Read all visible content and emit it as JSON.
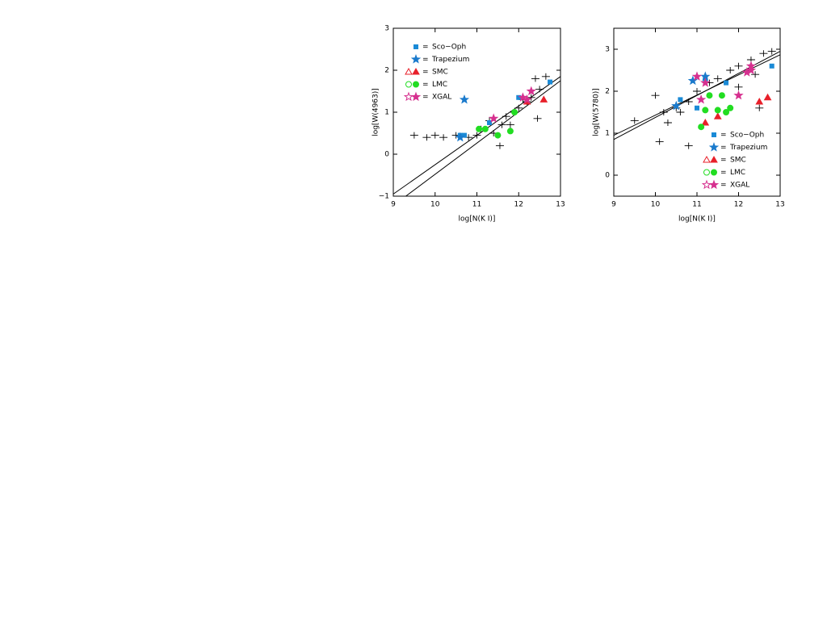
{
  "legend_separator": "=",
  "chart_data": [
    {
      "type": "scatter",
      "xlabel": "log[N(K I)]",
      "ylabel": "log[W(4963)]",
      "xlim": [
        9,
        13
      ],
      "ylim": [
        -1,
        3
      ],
      "xticks": [
        9,
        10,
        11,
        12,
        13
      ],
      "yticks": [
        {
          "value": -1,
          "label": "−1"
        },
        0,
        1,
        2,
        3
      ],
      "legend": "upper left",
      "fits": [
        {
          "x": [
            9,
            13
          ],
          "values": [
            -0.95,
            1.85
          ]
        },
        {
          "x": [
            9.3,
            13
          ],
          "values": [
            -1,
            1.75
          ]
        }
      ],
      "series": [
        {
          "color": "#000000",
          "marker": "plus",
          "x": [
            9.5,
            9.8,
            10.0,
            10.2,
            10.5,
            10.8,
            11.0,
            11.1,
            11.4,
            11.6,
            11.7,
            11.9,
            12.0,
            12.2,
            12.3,
            12.5,
            12.65,
            12.4,
            12.1,
            11.8,
            11.3,
            12.45,
            11.55
          ],
          "values": [
            0.45,
            0.4,
            0.45,
            0.4,
            0.45,
            0.4,
            0.45,
            0.6,
            0.5,
            0.7,
            0.9,
            1.0,
            1.1,
            1.25,
            1.35,
            1.55,
            1.85,
            1.8,
            1.3,
            0.7,
            0.8,
            0.85,
            0.2
          ]
        },
        {
          "name": "Sco−Oph",
          "color": "#1a8ad6",
          "marker": "square",
          "x": [
            10.7,
            10.6,
            12.0,
            12.75,
            11.3
          ],
          "values": [
            0.45,
            0.45,
            1.35,
            1.72,
            0.75
          ]
        },
        {
          "name": "Trapezium",
          "color": "#1a7acc",
          "marker": "star",
          "x": [
            10.7,
            10.6
          ],
          "values": [
            1.3,
            0.4
          ]
        },
        {
          "name": "SMC",
          "color": "#e8202a",
          "marker": "triangle",
          "legend_open": true,
          "x": [
            12.6,
            12.2
          ],
          "values": [
            1.3,
            1.25
          ]
        },
        {
          "name": "LMC",
          "color": "#22dd22",
          "marker": "circle",
          "legend_open": true,
          "x": [
            11.5,
            11.8,
            11.9,
            11.2,
            11.05
          ],
          "values": [
            0.45,
            0.55,
            1.0,
            0.6,
            0.6
          ]
        },
        {
          "name": "XGAL",
          "color": "#d6308f",
          "marker": "star",
          "legend_open": true,
          "x": [
            12.1,
            12.3,
            11.4,
            12.2
          ],
          "values": [
            1.35,
            1.5,
            0.85,
            1.3
          ]
        }
      ]
    },
    {
      "type": "scatter",
      "xlabel": "log[N(K I)]",
      "ylabel": "log[W(5780)]",
      "xlim": [
        9,
        13
      ],
      "ylim": [
        -0.5,
        3.5
      ],
      "xticks": [
        9,
        10,
        11,
        12,
        13
      ],
      "yticks": [
        0,
        1,
        2,
        3
      ],
      "legend": "lower right",
      "fits": [
        {
          "x": [
            9,
            13
          ],
          "values": [
            0.85,
            2.95
          ]
        },
        {
          "x": [
            9,
            13
          ],
          "values": [
            0.95,
            2.87
          ]
        }
      ],
      "series": [
        {
          "color": "#000000",
          "marker": "plus",
          "x": [
            9.5,
            10.0,
            10.2,
            10.3,
            10.5,
            10.6,
            10.8,
            10.8,
            11.0,
            11.3,
            11.5,
            11.8,
            12.0,
            12.3,
            12.6,
            12.8,
            12.4,
            12.5,
            10.1,
            12.0
          ],
          "values": [
            1.3,
            1.9,
            1.5,
            1.25,
            1.6,
            1.5,
            0.7,
            1.75,
            2.0,
            2.2,
            2.3,
            2.5,
            2.6,
            2.75,
            2.9,
            2.95,
            2.4,
            1.6,
            0.8,
            2.1
          ]
        },
        {
          "name": "Sco−Oph",
          "color": "#1a8ad6",
          "marker": "square",
          "x": [
            12.8,
            11.2,
            10.6,
            11.7,
            11.0
          ],
          "values": [
            2.6,
            2.3,
            1.8,
            2.2,
            1.6
          ]
        },
        {
          "name": "Trapezium",
          "color": "#1a7acc",
          "marker": "star",
          "x": [
            10.9,
            11.2,
            10.5
          ],
          "values": [
            2.25,
            2.35,
            1.65
          ]
        },
        {
          "name": "SMC",
          "color": "#e8202a",
          "marker": "triangle",
          "legend_open": true,
          "x": [
            12.7,
            12.5,
            11.5,
            11.2
          ],
          "values": [
            1.85,
            1.75,
            1.4,
            1.25
          ]
        },
        {
          "name": "LMC",
          "color": "#22dd22",
          "marker": "circle",
          "legend_open": true,
          "x": [
            11.1,
            11.5,
            11.7,
            11.8,
            11.2,
            11.3,
            11.6
          ],
          "values": [
            1.15,
            1.55,
            1.5,
            1.6,
            1.55,
            1.9,
            1.9
          ]
        },
        {
          "name": "XGAL",
          "color": "#d6308f",
          "marker": "star",
          "legend_open": true,
          "x": [
            12.3,
            12.2,
            11.0,
            11.2,
            12.0,
            11.1,
            12.3
          ],
          "values": [
            2.5,
            2.45,
            2.35,
            2.2,
            1.9,
            1.8,
            2.6
          ]
        }
      ]
    }
  ]
}
